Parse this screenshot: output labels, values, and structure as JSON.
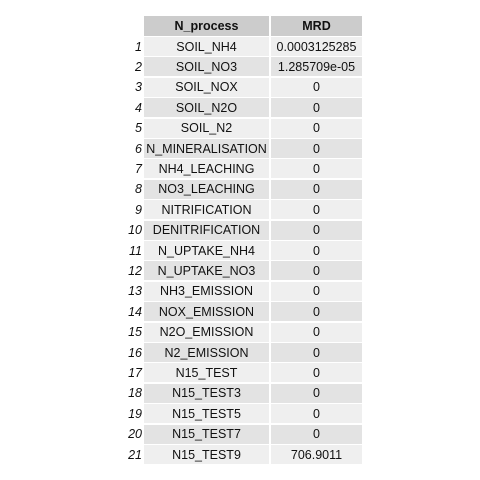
{
  "table": {
    "headers": [
      "N_process",
      "MRD"
    ],
    "rows": [
      {
        "idx": "1",
        "process": "SOIL_NH4",
        "mrd": "0.0003125285"
      },
      {
        "idx": "2",
        "process": "SOIL_NO3",
        "mrd": "1.285709e-05"
      },
      {
        "idx": "3",
        "process": "SOIL_NOX",
        "mrd": "0"
      },
      {
        "idx": "4",
        "process": "SOIL_N2O",
        "mrd": "0"
      },
      {
        "idx": "5",
        "process": "SOIL_N2",
        "mrd": "0"
      },
      {
        "idx": "6",
        "process": "N_MINERALISATION",
        "mrd": "0"
      },
      {
        "idx": "7",
        "process": "NH4_LEACHING",
        "mrd": "0"
      },
      {
        "idx": "8",
        "process": "NO3_LEACHING",
        "mrd": "0"
      },
      {
        "idx": "9",
        "process": "NITRIFICATION",
        "mrd": "0"
      },
      {
        "idx": "10",
        "process": "DENITRIFICATION",
        "mrd": "0"
      },
      {
        "idx": "11",
        "process": "N_UPTAKE_NH4",
        "mrd": "0"
      },
      {
        "idx": "12",
        "process": "N_UPTAKE_NO3",
        "mrd": "0"
      },
      {
        "idx": "13",
        "process": "NH3_EMISSION",
        "mrd": "0"
      },
      {
        "idx": "14",
        "process": "NOX_EMISSION",
        "mrd": "0"
      },
      {
        "idx": "15",
        "process": "N2O_EMISSION",
        "mrd": "0"
      },
      {
        "idx": "16",
        "process": "N2_EMISSION",
        "mrd": "0"
      },
      {
        "idx": "17",
        "process": "N15_TEST",
        "mrd": "0"
      },
      {
        "idx": "18",
        "process": "N15_TEST3",
        "mrd": "0"
      },
      {
        "idx": "19",
        "process": "N15_TEST5",
        "mrd": "0"
      },
      {
        "idx": "20",
        "process": "N15_TEST7",
        "mrd": "0"
      },
      {
        "idx": "21",
        "process": "N15_TEST9",
        "mrd": "706.9011"
      }
    ]
  }
}
